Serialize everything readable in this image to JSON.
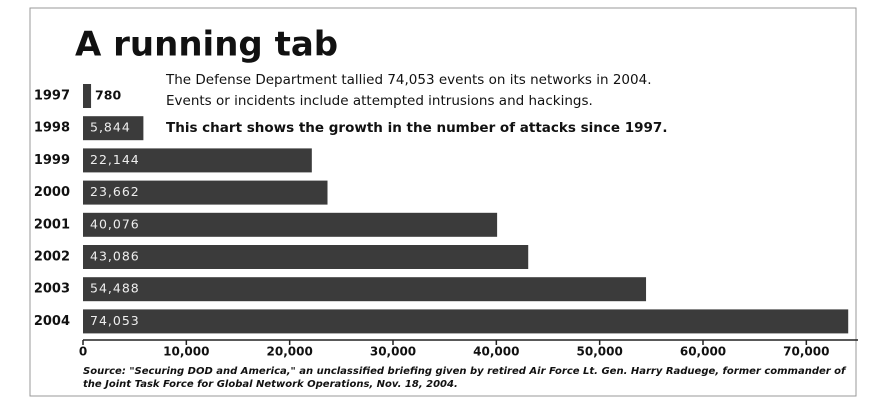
{
  "chart_data": {
    "type": "hbar",
    "title": "A running tab",
    "annotations": [
      "The Defense Department tallied 74,053 events on its networks in 2004.",
      "Events or incidents include attempted intrusions and hackings.",
      "This chart shows the growth in the number of attacks since 1997."
    ],
    "categories": [
      "1997",
      "1998",
      "1999",
      "2000",
      "2001",
      "2002",
      "2003",
      "2004"
    ],
    "values": [
      780,
      5844,
      22144,
      23662,
      40076,
      43086,
      54488,
      74053
    ],
    "value_labels": [
      "780",
      "5,844",
      "22,144",
      "23,662",
      "40,076",
      "43,086",
      "54,488",
      "74,053"
    ],
    "color": "#3b3b3b",
    "xlim": [
      0,
      75000
    ],
    "xticks": [
      0,
      {
        "value": 10000,
        "label": "10,000"
      },
      {
        "value": 20000,
        "label": "20,000"
      },
      {
        "value": 30000,
        "label": "30,000"
      },
      {
        "value": 40000,
        "label": "40,000"
      },
      {
        "value": 50000,
        "label": "50,000"
      },
      {
        "value": 60000,
        "label": "60,000"
      },
      {
        "value": 70000,
        "label": "70,000"
      }
    ],
    "source": [
      "Source: \"Securing DOD and America,\" an unclassified briefing given by retired Air Force Lt. Gen. Harry Raduege, former commander of",
      "the Joint Task Force for Global Network Operations, Nov. 18, 2004."
    ]
  }
}
